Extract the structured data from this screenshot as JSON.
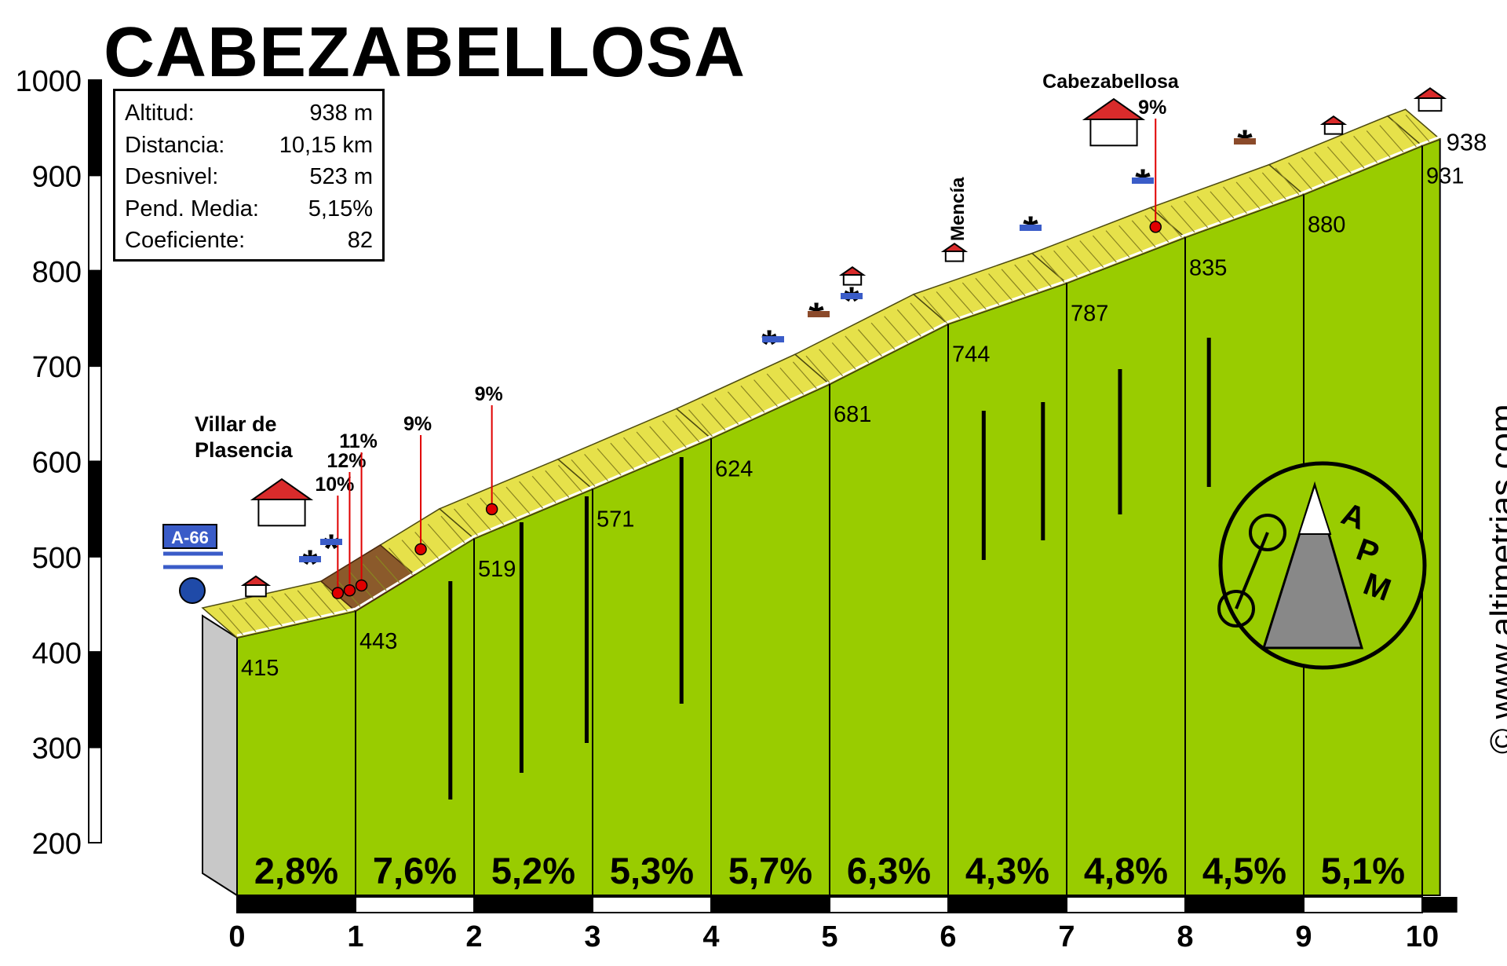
{
  "chart_data": {
    "type": "area",
    "title": "CABEZABELLOSA",
    "info": [
      {
        "label": "Altitud:",
        "value": "938 m"
      },
      {
        "label": "Distancia:",
        "value": "10,15 km"
      },
      {
        "label": "Desnivel:",
        "value": "523 m"
      },
      {
        "label": "Pend. Media:",
        "value": "5,15%"
      },
      {
        "label": "Coeficiente:",
        "value": "82"
      }
    ],
    "y_ticks": [
      "1000",
      "900",
      "800",
      "700",
      "600",
      "500",
      "400",
      "300",
      "200"
    ],
    "x_ticks": [
      "0",
      "1",
      "2",
      "3",
      "4",
      "5",
      "6",
      "7",
      "8",
      "9",
      "10"
    ],
    "ylim": [
      200,
      1000
    ],
    "xlim": [
      0,
      10.15
    ],
    "profile": [
      {
        "x": 0,
        "y": 415
      },
      {
        "x": 1,
        "y": 443
      },
      {
        "x": 2,
        "y": 519
      },
      {
        "x": 3,
        "y": 571
      },
      {
        "x": 4,
        "y": 624
      },
      {
        "x": 5,
        "y": 681
      },
      {
        "x": 6,
        "y": 744
      },
      {
        "x": 7,
        "y": 787
      },
      {
        "x": 8,
        "y": 835
      },
      {
        "x": 9,
        "y": 880
      },
      {
        "x": 10,
        "y": 931
      },
      {
        "x": 10.15,
        "y": 938
      }
    ],
    "km_labels": [
      "415",
      "443",
      "519",
      "571",
      "624",
      "681",
      "744",
      "787",
      "835",
      "880",
      "931"
    ],
    "segment_grades": [
      "2,8%",
      "7,6%",
      "5,2%",
      "5,3%",
      "5,7%",
      "6,3%",
      "4,3%",
      "4,8%",
      "4,5%",
      "5,1%"
    ],
    "summit_label": "938",
    "places": [
      {
        "name": "Villar de Plasencia",
        "x": 0.6
      },
      {
        "name": "Mencía",
        "x": 6.05
      },
      {
        "name": "Cabezabellosa",
        "x": 7.75
      }
    ],
    "grade_markers": [
      {
        "label": "10%",
        "x": 0.85
      },
      {
        "label": "12%",
        "x": 0.95
      },
      {
        "label": "11%",
        "x": 1.05
      },
      {
        "label": "9%",
        "x": 1.55
      },
      {
        "label": "9%",
        "x": 2.15
      },
      {
        "label": "9%",
        "x": 7.75
      }
    ],
    "road_sign": "A-66",
    "logo_letters": [
      "A",
      "P",
      "M"
    ],
    "credit": "© www.altimetrias.com",
    "colors": {
      "fill": "#99cc00",
      "road": "#e6e14a",
      "road_steep": "#8b5a2b",
      "marker": "#e00000",
      "side": "#c8c8c8"
    }
  }
}
